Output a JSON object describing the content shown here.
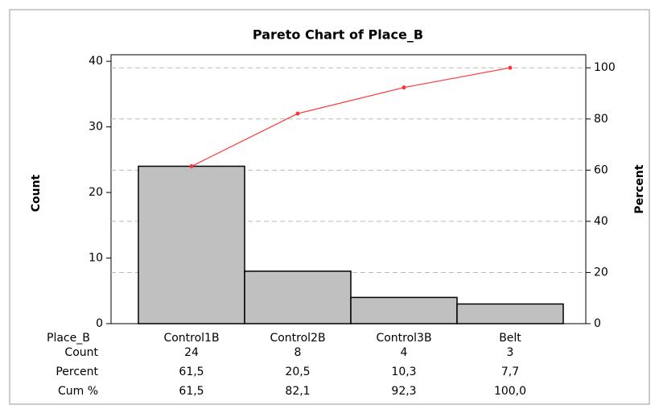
{
  "chart_data": {
    "type": "pareto",
    "title": "Pareto Chart of Place_B",
    "ylabel": "Count",
    "y2label": "Percent",
    "xlabel": "Place_B",
    "categories": [
      "Control1B",
      "Control2B",
      "Control3B",
      "Belt"
    ],
    "row_labels": [
      "Count",
      "Percent",
      "Cum %"
    ],
    "series": [
      {
        "values": [
          24,
          8,
          4,
          3
        ],
        "color": "#c0c0c0"
      },
      {
        "axis": "y2",
        "values": [
          61.5,
          82.1,
          92.3,
          100
        ],
        "value_labels": [
          "61,5",
          "82,1",
          "92,3",
          "100,0"
        ],
        "color": "#ff3333"
      }
    ],
    "percent": {
      "values": [
        61.5,
        20.5,
        10.3,
        7.7
      ],
      "value_labels": [
        "61,5",
        "20,5",
        "10,3",
        "7,7"
      ]
    },
    "ylim": [
      0,
      41
    ],
    "yticks": [
      0,
      10,
      20,
      30,
      40
    ],
    "y2lim": [
      0,
      105.1
    ],
    "y2ticks": [
      0,
      20,
      40,
      60,
      80,
      100
    ],
    "grid": true
  }
}
